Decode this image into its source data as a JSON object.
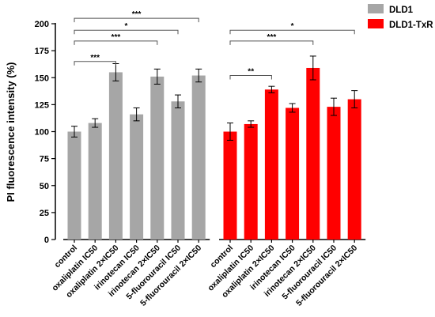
{
  "chart_data": {
    "type": "bar",
    "ylabel": "PI fluorescence intensity (%)",
    "xlabel": "",
    "ylim": [
      0,
      200
    ],
    "yticks": [
      0,
      25,
      50,
      75,
      100,
      125,
      150,
      175,
      200
    ],
    "legend_position": "top-right",
    "series": [
      {
        "name": "DLD1",
        "color": "#a6a6a6",
        "categories": [
          "control",
          "oxaliplatin IC50",
          "oxaliplatin 2×IC50",
          "irinotecan IC50",
          "irinotecan 2×IC50",
          "5-fluorouracil IC50",
          "5-fluorouracil 2×IC50"
        ],
        "values": [
          100,
          108,
          155,
          116,
          151,
          128,
          152
        ],
        "errors": [
          5,
          4,
          8,
          6,
          7,
          6,
          6
        ]
      },
      {
        "name": "DLD1-TxR",
        "color": "#ff0000",
        "categories": [
          "control",
          "oxaliplatin IC50",
          "oxaliplatin 2×IC50",
          "irinotecan IC50",
          "irinotecan 2×IC50",
          "5-fluorouracil IC50",
          "5-fluorouracil 2×IC50"
        ],
        "values": [
          100,
          107,
          139,
          122,
          159,
          123,
          130
        ],
        "errors": [
          8,
          3,
          3,
          4,
          11,
          8,
          8
        ]
      }
    ],
    "significance": [
      {
        "series": 0,
        "from": 0,
        "to": 2,
        "label": "***",
        "y": 165
      },
      {
        "series": 0,
        "from": 0,
        "to": 4,
        "label": "***",
        "y": 184
      },
      {
        "series": 0,
        "from": 0,
        "to": 5,
        "label": "*",
        "y": 194
      },
      {
        "series": 0,
        "from": 0,
        "to": 6,
        "label": "***",
        "y": 205
      },
      {
        "series": 1,
        "from": 0,
        "to": 2,
        "label": "**",
        "y": 152
      },
      {
        "series": 1,
        "from": 0,
        "to": 4,
        "label": "***",
        "y": 184
      },
      {
        "series": 1,
        "from": 0,
        "to": 6,
        "label": "*",
        "y": 194
      }
    ]
  }
}
